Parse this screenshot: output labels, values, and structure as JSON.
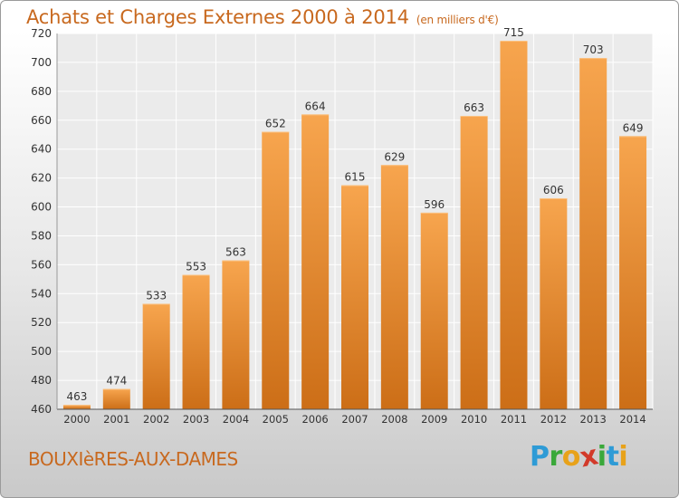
{
  "header": {
    "title": "Achats et Charges Externes 2000 à 2014",
    "subtitle": "(en milliers d'€)"
  },
  "footer": {
    "commune": "BOUXIèRES-AUX-DAMES"
  },
  "logo": {
    "letters": [
      {
        "char": "P",
        "color": "#2e9bd6"
      },
      {
        "char": "r",
        "color": "#3aa83a"
      },
      {
        "char": "o",
        "color": "#e8a21a"
      },
      {
        "char": "x",
        "color": "#d23a2a"
      },
      {
        "char": "i",
        "color": "#3aa83a"
      },
      {
        "char": "t",
        "color": "#2e9bd6"
      },
      {
        "char": "i",
        "color": "#e8a21a"
      }
    ]
  },
  "chart_data": {
    "type": "bar",
    "title": "Achats et Charges Externes 2000 à 2014",
    "subtitle": "(en milliers d'€)",
    "xlabel": "",
    "ylabel": "",
    "categories": [
      "2000",
      "2001",
      "2002",
      "2003",
      "2004",
      "2005",
      "2006",
      "2007",
      "2008",
      "2009",
      "2010",
      "2011",
      "2012",
      "2013",
      "2014"
    ],
    "values": [
      463,
      474,
      533,
      553,
      563,
      652,
      664,
      615,
      629,
      596,
      663,
      715,
      606,
      703,
      649
    ],
    "ylim": [
      460,
      720
    ],
    "yticks": [
      460,
      480,
      500,
      520,
      540,
      560,
      580,
      600,
      620,
      640,
      660,
      680,
      700,
      720
    ],
    "grid": true,
    "bar_color_light": "#f7a54e",
    "bar_color_dark": "#cc6e17",
    "title_color": "#c8691f"
  }
}
